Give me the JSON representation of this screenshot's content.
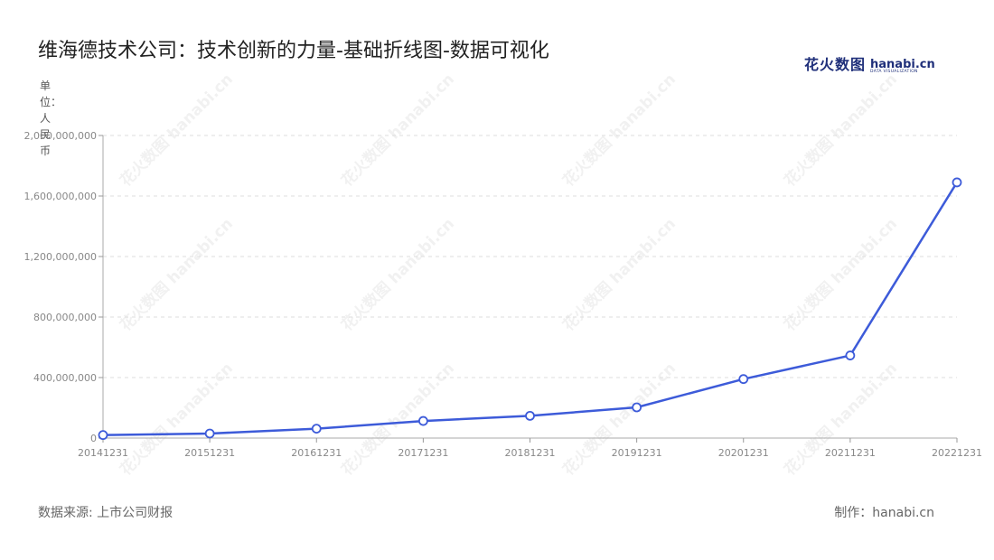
{
  "header": {
    "title": "维海德技术公司：技术创新的力量-基础折线图-数据可视化",
    "brand_cn": "花火数图",
    "brand_en": "hanabi.cn",
    "brand_sub": "DATA VISUALIZATION"
  },
  "unit_label": "单位：人民币",
  "footer": {
    "source": "数据来源: 上市公司财报",
    "credit": "制作：hanabi.cn"
  },
  "watermark_text": "花火数图 hanabi.cn",
  "chart_data": {
    "type": "line",
    "title": "维海德技术公司：技术创新的力量-基础折线图-数据可视化",
    "xlabel": "",
    "ylabel": "单位：人民币",
    "categories": [
      "20141231",
      "20151231",
      "20161231",
      "20171231",
      "20181231",
      "20191231",
      "20201231",
      "20211231",
      "20221231"
    ],
    "series": [
      {
        "values": [
          20000000,
          30000000,
          62000000,
          113000000,
          147000000,
          203000000,
          390000000,
          546000000,
          1690000000
        ]
      }
    ],
    "ylim": [
      0,
      2000000000
    ],
    "yticks": [
      0,
      400000000,
      800000000,
      1200000000,
      1600000000,
      2000000000
    ],
    "ytick_labels": [
      "0",
      "400,000,000",
      "800,000,000",
      "1,200,000,000",
      "1,600,000,000",
      "2,000,000,000"
    ],
    "grid": true,
    "line_color": "#3d5bd9",
    "marker_fill": "#ffffff"
  }
}
